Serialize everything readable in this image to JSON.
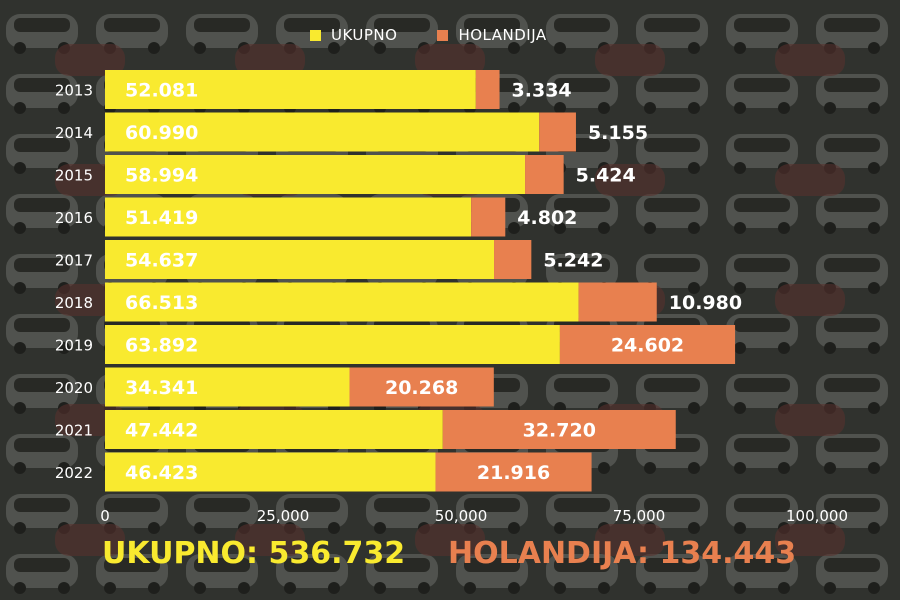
{
  "chart_data": {
    "type": "bar",
    "orientation": "horizontal",
    "stacked": true,
    "categories": [
      "2013",
      "2014",
      "2015",
      "2016",
      "2017",
      "2018",
      "2019",
      "2020",
      "2021",
      "2022"
    ],
    "series": [
      {
        "name": "UKUPNO",
        "color": "#f9ea2f",
        "values": [
          52081,
          60990,
          58994,
          51419,
          54637,
          66513,
          63892,
          34341,
          47442,
          46423
        ],
        "labels": [
          "52.081",
          "60.990",
          "58.994",
          "51.419",
          "54.637",
          "66.513",
          "63.892",
          "34.341",
          "47.442",
          "46.423"
        ]
      },
      {
        "name": "HOLANDIJA",
        "color": "#e8804f",
        "values": [
          3334,
          5155,
          5424,
          4802,
          5242,
          10980,
          24602,
          20268,
          32720,
          21916
        ],
        "labels": [
          "3.334",
          "5.155",
          "5.424",
          "4.802",
          "5.242",
          "10.980",
          "24.602",
          "20.268",
          "32.720",
          "21.916"
        ]
      }
    ],
    "xlim": [
      0,
      100000
    ],
    "xticks": [
      0,
      25000,
      50000,
      75000,
      100000
    ],
    "xtick_labels": [
      "0",
      "25,000",
      "50,000",
      "75,000",
      "100,000"
    ],
    "legend_position": "top"
  },
  "totals": {
    "total_1": "UKUPNO: 536.732",
    "total_2": "HOLANDIJA: 134.443"
  }
}
